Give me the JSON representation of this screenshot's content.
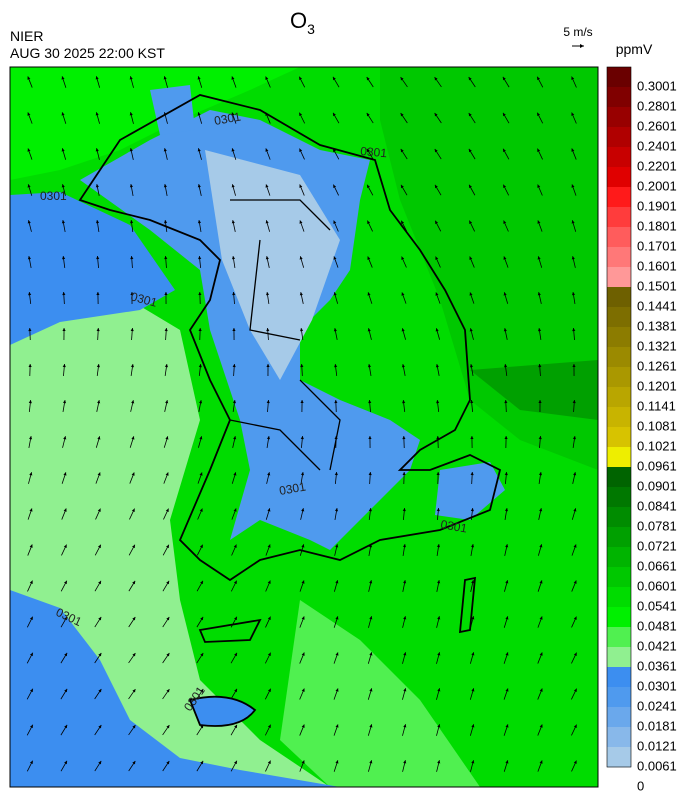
{
  "header": {
    "agency": "NIER",
    "datetime": "AUG 30 2025 22:00 KST",
    "title": {
      "main": "O",
      "sub": "3"
    }
  },
  "wind_reference": {
    "label": "5 m/s"
  },
  "colorbar": {
    "unit": "ppmV",
    "ticks": [
      0.3001,
      0.2801,
      0.2601,
      0.2401,
      0.2201,
      0.2001,
      0.1901,
      0.1801,
      0.1701,
      0.1601,
      0.1501,
      0.1441,
      0.1381,
      0.1321,
      0.1261,
      0.1201,
      0.1141,
      0.1081,
      0.1021,
      0.0961,
      0.0901,
      0.0841,
      0.0781,
      0.0721,
      0.0661,
      0.0601,
      0.0541,
      0.0481,
      0.0421,
      0.0361,
      0.0301,
      0.0241,
      0.0181,
      0.0121,
      0.0061,
      0
    ],
    "colors": [
      "#6a0000",
      "#800000",
      "#980000",
      "#b00000",
      "#c80000",
      "#e00000",
      "#ff1a1a",
      "#ff3c3c",
      "#ff5c5c",
      "#ff7878",
      "#ff9898",
      "#6e6000",
      "#7d6e00",
      "#8c7c00",
      "#9b8a00",
      "#aa9800",
      "#b9a600",
      "#c8b400",
      "#d7c300",
      "#eeee00",
      "#006400",
      "#007800",
      "#008c00",
      "#00a000",
      "#00b400",
      "#00c800",
      "#00dc00",
      "#00f000",
      "#50f050",
      "#90f090",
      "#3c8ef0",
      "#4f9aee",
      "#6aa8ec",
      "#88b8ea",
      "#a6cae8"
    ]
  },
  "contour_labels": [
    "0301",
    "0301",
    "0301",
    "0301",
    "0301",
    "0301",
    "0301",
    "0301"
  ]
}
